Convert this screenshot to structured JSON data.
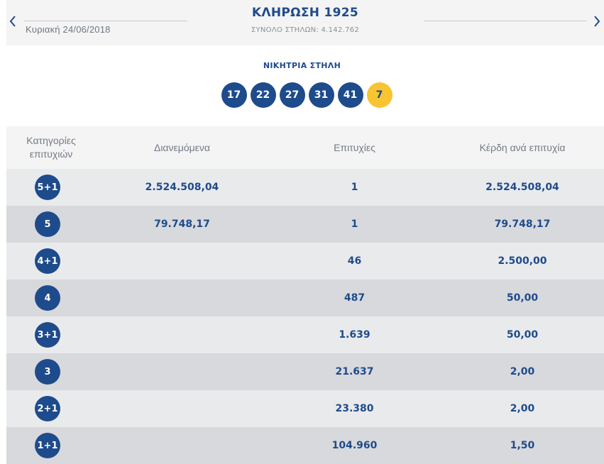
{
  "header": {
    "date": "Κυριακή 24/06/2018",
    "draw_title": "ΚΛΗΡΩΣΗ 1925",
    "total_columns": "ΣΥΝΟΛΟ ΣΤΗΛΩΝ: 4.142.762",
    "prev_icon": "chevron-left-icon",
    "next_icon": "chevron-right-icon"
  },
  "winning": {
    "label": "ΝΙΚΗΤΡΙΑ ΣΤΗΛΗ",
    "numbers": [
      "17",
      "22",
      "27",
      "31",
      "41"
    ],
    "joker": "7"
  },
  "colors": {
    "primary_blue": "#1e4b8c",
    "joker_yellow": "#f7c531",
    "row_light": "#e9eaec",
    "row_dark": "#d8d9dc"
  },
  "table": {
    "headers": [
      "Κατηγορίες επιτυχιών",
      "Διανεμόμενα",
      "Επιτυχίες",
      "Κέρδη ανά επιτυχία"
    ],
    "rows": [
      {
        "category": "5+1",
        "distributed": "2.524.508,04",
        "winners": "1",
        "prize": "2.524.508,04"
      },
      {
        "category": "5",
        "distributed": "79.748,17",
        "winners": "1",
        "prize": "79.748,17"
      },
      {
        "category": "4+1",
        "distributed": "",
        "winners": "46",
        "prize": "2.500,00"
      },
      {
        "category": "4",
        "distributed": "",
        "winners": "487",
        "prize": "50,00"
      },
      {
        "category": "3+1",
        "distributed": "",
        "winners": "1.639",
        "prize": "50,00"
      },
      {
        "category": "3",
        "distributed": "",
        "winners": "21.637",
        "prize": "2,00"
      },
      {
        "category": "2+1",
        "distributed": "",
        "winners": "23.380",
        "prize": "2,00"
      },
      {
        "category": "1+1",
        "distributed": "",
        "winners": "104.960",
        "prize": "1,50"
      }
    ]
  }
}
